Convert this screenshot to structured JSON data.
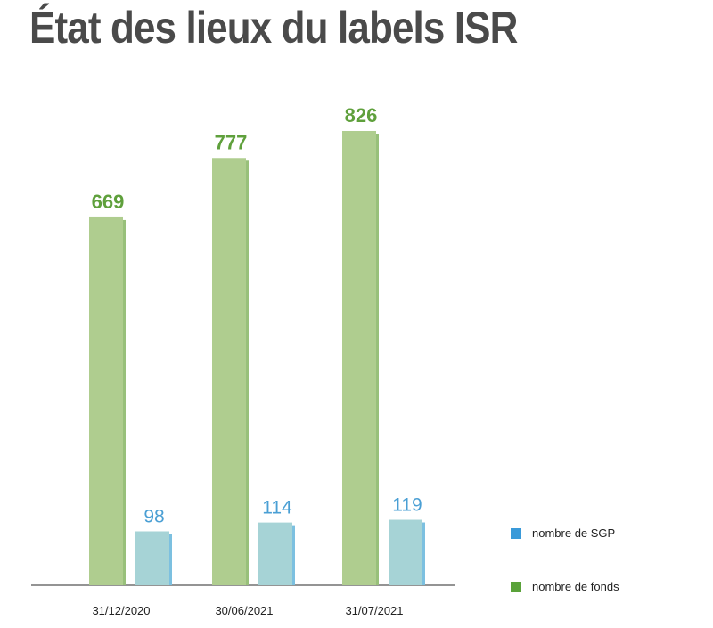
{
  "title": "État des lieux du labels ISR",
  "chart_data": {
    "type": "bar",
    "categories": [
      "31/12/2020",
      "30/06/2021",
      "31/07/2021"
    ],
    "series": [
      {
        "name": "nombre de fonds",
        "values": [
          669,
          777,
          826
        ],
        "color": "#afcd8f",
        "label_color": "#5fa03c"
      },
      {
        "name": "nombre de SGP",
        "values": [
          98,
          114,
          119
        ],
        "color": "#a6d3d6",
        "label_color": "#4a9fd4"
      }
    ],
    "legend": [
      {
        "label": "nombre de SGP",
        "color": "#3a9ad9"
      },
      {
        "label": "nombre de fonds",
        "color": "#5aa23a"
      }
    ],
    "legend_position": "bottom-right",
    "xlabel": "",
    "ylabel": "",
    "ylim": [
      0,
      826
    ],
    "grid": false
  }
}
